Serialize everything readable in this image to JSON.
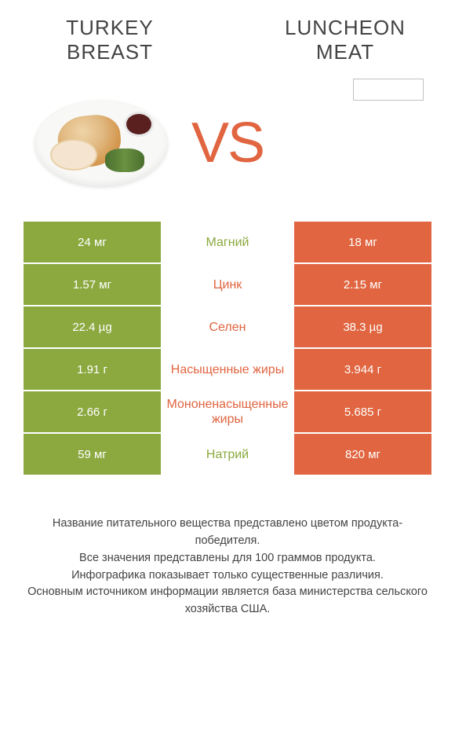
{
  "product_left": {
    "title_line1": "TURKEY",
    "title_line2": "BREAST"
  },
  "product_right": {
    "title_line1": "LUNCHEON",
    "title_line2": "MEAT"
  },
  "vs_label": "VS",
  "colors": {
    "left_bg": "#8ba93f",
    "right_bg": "#e06540",
    "winner_left": "#8ba93f",
    "winner_right": "#e06540",
    "row_border": "#ffffff",
    "text_white": "#ffffff",
    "text_dark": "#434343"
  },
  "rows": [
    {
      "left": "24 мг",
      "label": "Магний",
      "right": "18 мг",
      "winner": "left"
    },
    {
      "left": "1.57 мг",
      "label": "Цинк",
      "right": "2.15 мг",
      "winner": "right"
    },
    {
      "left": "22.4 µg",
      "label": "Селен",
      "right": "38.3 µg",
      "winner": "right"
    },
    {
      "left": "1.91 г",
      "label": "Насыщенные жиры",
      "right": "3.944 г",
      "winner": "right"
    },
    {
      "left": "2.66 г",
      "label": "Мононенасыщенные жиры",
      "right": "5.685 г",
      "winner": "right"
    },
    {
      "left": "59 мг",
      "label": "Натрий",
      "right": "820 мг",
      "winner": "left"
    }
  ],
  "footer": {
    "line1": "Название питательного вещества представлено цветом продукта-победителя.",
    "line2": "Все значения представлены для 100 граммов продукта.",
    "line3": "Инфографика показывает только существенные различия.",
    "line4": "Основным источником информации является база министерства сельского хозяйства США."
  }
}
